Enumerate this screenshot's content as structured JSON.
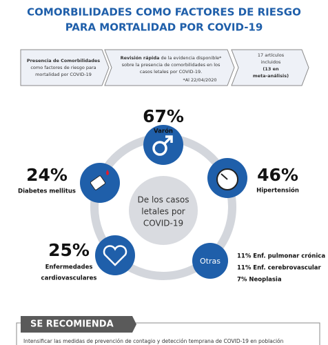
{
  "header": {
    "title_lines": [
      "COMORBILIDADES COMO FACTORES DE RIESGO",
      "PARA MORTALIDAD POR COVID-19"
    ]
  },
  "steps": [
    {
      "lines": [
        "Presencia de Comorbilidades",
        "como factores de riesgo para",
        "mortalidad por COVID-19"
      ]
    },
    {
      "bold": "Revisión rápida",
      "rest": " de la evidencia disponible*",
      "lines": [
        "sobre la presencia de comorbilidades en los",
        "casos letales por COVID-19."
      ],
      "note": "*Al 22/04/2020"
    },
    {
      "lines": [
        "17 artículos",
        "incluidos"
      ],
      "bold_lines": [
        "(13 en",
        "meta-análisis)"
      ]
    }
  ],
  "center": {
    "lines": [
      "De los casos",
      "letales por",
      "COVID-19"
    ]
  },
  "factors": [
    {
      "value": "67%",
      "label_lines": [
        "Varón"
      ]
    },
    {
      "value": "46%",
      "label_lines": [
        "Hipertensión"
      ]
    },
    {
      "value": "24%",
      "label_lines": [
        "Diabetes mellitus"
      ]
    },
    {
      "value": "25%",
      "label_lines": [
        "Enfermedades",
        "cardiovasculares"
      ]
    }
  ],
  "others": {
    "label": "Otras",
    "lines": [
      "11% Enf. pulmonar crónica",
      "11% Enf. cerebrovascular",
      "7% Neoplasia"
    ]
  },
  "recommendation": {
    "header": "SE RECOMIENDA",
    "text": "Intensificar las medidas de prevención de contagio y detección temprana de COVID-19 en población"
  }
}
